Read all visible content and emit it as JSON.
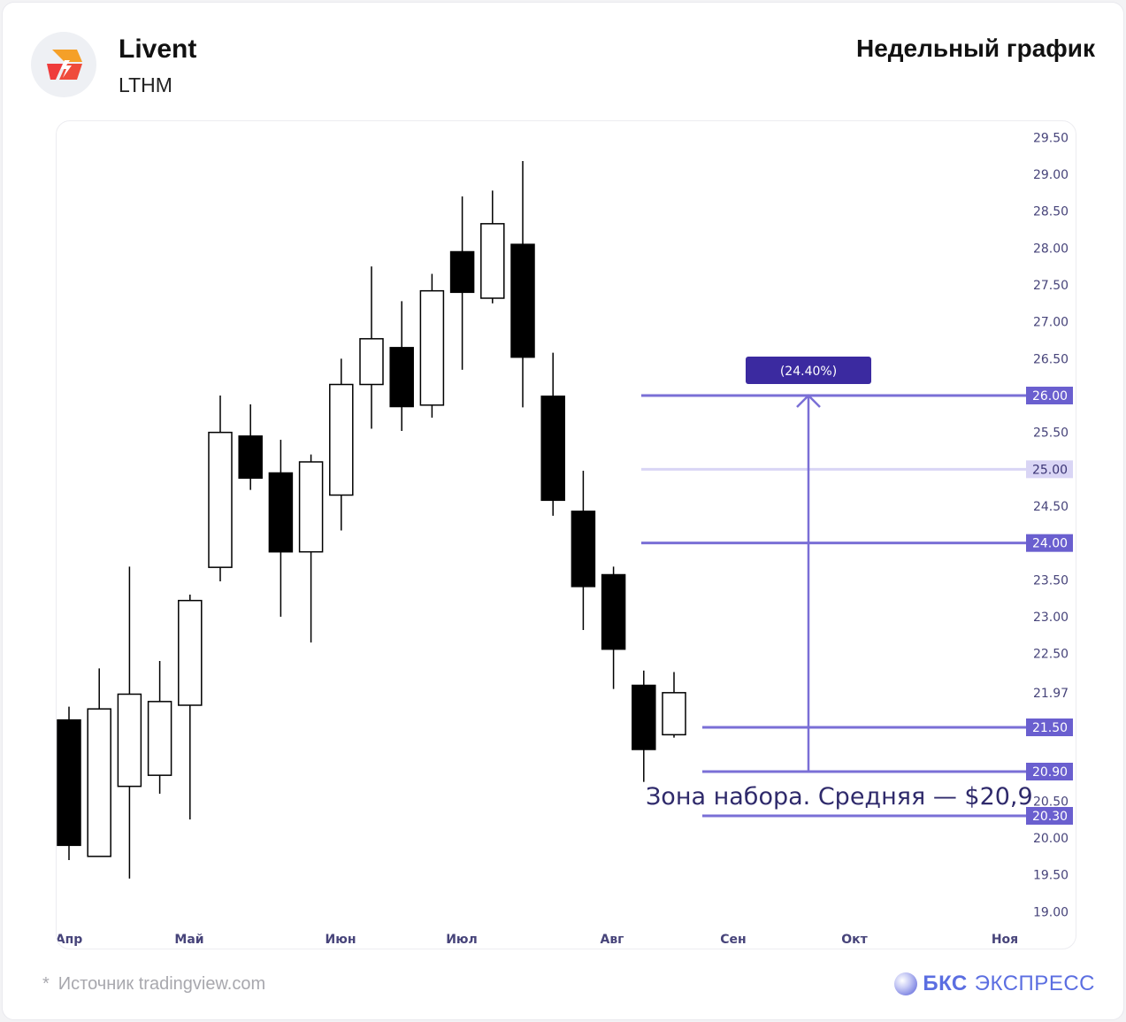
{
  "header": {
    "company": "Livent",
    "ticker": "LTHM",
    "period": "Недельный график"
  },
  "footer": {
    "source_star": "*",
    "source": "Источник tradingview.com",
    "brand_bold": "БКС",
    "brand_light": "ЭКСПРЕСС"
  },
  "colors": {
    "accent": "#7a6fd6",
    "label_bg": "#6a5fcf",
    "badge_bg": "#3b2aa0",
    "light_level": "#d9d5f5",
    "axis_text": "#47447a"
  },
  "icons": {
    "logo": "lightning-bolt-logo-icon",
    "brand": "bcs-orb-icon"
  },
  "chart_data": {
    "type": "candlestick",
    "title": "",
    "xlabel": "",
    "ylabel": "",
    "ylim": [
      18.78,
      29.55
    ],
    "y_ticks": [
      "29.50",
      "29.00",
      "28.50",
      "28.00",
      "27.50",
      "27.00",
      "26.50",
      "25.50",
      "24.50",
      "23.50",
      "23.00",
      "22.50",
      "21.97",
      "20.50",
      "20.00",
      "19.50",
      "19.00"
    ],
    "x_ticks": [
      "Апр",
      "Май",
      "Июн",
      "Июл",
      "Авг",
      "Сен",
      "Окт",
      "Ноя"
    ],
    "candles": [
      {
        "o": 21.6,
        "h": 21.78,
        "l": 19.7,
        "c": 19.9
      },
      {
        "o": 19.75,
        "h": 22.3,
        "l": 19.75,
        "c": 21.75
      },
      {
        "o": 20.7,
        "h": 23.68,
        "l": 19.45,
        "c": 21.95
      },
      {
        "o": 20.85,
        "h": 22.4,
        "l": 20.6,
        "c": 21.85
      },
      {
        "o": 21.8,
        "h": 23.3,
        "l": 20.25,
        "c": 23.22
      },
      {
        "o": 23.67,
        "h": 26.0,
        "l": 23.48,
        "c": 25.5
      },
      {
        "o": 25.45,
        "h": 25.88,
        "l": 24.72,
        "c": 24.88
      },
      {
        "o": 24.95,
        "h": 25.4,
        "l": 23.0,
        "c": 23.88
      },
      {
        "o": 23.88,
        "h": 25.2,
        "l": 22.65,
        "c": 25.1
      },
      {
        "o": 24.65,
        "h": 26.5,
        "l": 24.17,
        "c": 26.15
      },
      {
        "o": 26.15,
        "h": 27.75,
        "l": 25.55,
        "c": 26.77
      },
      {
        "o": 26.65,
        "h": 27.28,
        "l": 25.52,
        "c": 25.85
      },
      {
        "o": 25.87,
        "h": 27.65,
        "l": 25.7,
        "c": 27.42
      },
      {
        "o": 27.95,
        "h": 28.7,
        "l": 26.35,
        "c": 27.4
      },
      {
        "o": 27.32,
        "h": 28.78,
        "l": 27.25,
        "c": 28.33
      },
      {
        "o": 28.05,
        "h": 29.18,
        "l": 25.84,
        "c": 26.52
      },
      {
        "o": 25.99,
        "h": 26.58,
        "l": 24.37,
        "c": 24.58
      },
      {
        "o": 24.43,
        "h": 24.98,
        "l": 22.82,
        "c": 23.41
      },
      {
        "o": 23.57,
        "h": 23.68,
        "l": 22.02,
        "c": 22.56
      },
      {
        "o": 22.07,
        "h": 22.27,
        "l": 20.76,
        "c": 21.2
      },
      {
        "o": 21.4,
        "h": 22.25,
        "l": 21.36,
        "c": 21.97
      }
    ],
    "levels": [
      {
        "value": 26.0,
        "label": "26.00",
        "style": "strong"
      },
      {
        "value": 25.0,
        "label": "25.00",
        "style": "light"
      },
      {
        "value": 24.0,
        "label": "24.00",
        "style": "strong"
      },
      {
        "value": 21.5,
        "label": "21.50",
        "style": "strong"
      },
      {
        "value": 20.9,
        "label": "20.90",
        "style": "strong"
      },
      {
        "value": 20.3,
        "label": "20.30",
        "style": "strong"
      }
    ],
    "range_badge": "(24.40%)",
    "zone_text": "Зона набора. Средняя — $20,9"
  }
}
